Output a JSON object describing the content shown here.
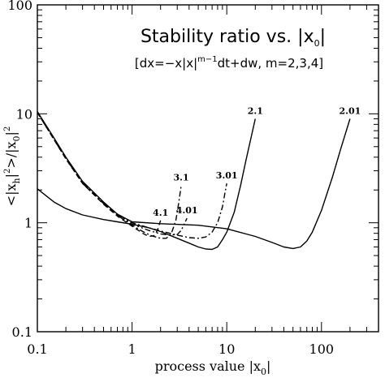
{
  "chart_data": {
    "type": "line",
    "title": {
      "main": "Stability ratio vs. ",
      "abs_var": "x",
      "abs_sub": "0"
    },
    "subtitle": {
      "part1": "[dx=−x|x|",
      "exp": "m−1",
      "part2": "dt+dw, m=2,3,4]"
    },
    "xlabel": {
      "text": "process value ",
      "var": "x",
      "sub": "0"
    },
    "ylabel": {
      "lt": "<",
      "xh": "x",
      "xh_sub": "h",
      "sq1": "2",
      "gt": ">/",
      "x0": "x",
      "x0_sub": "0",
      "sq2": "2"
    },
    "x_scale": "log",
    "y_scale": "log",
    "xlim": [
      0.1,
      400
    ],
    "ylim": [
      0.1,
      100
    ],
    "x_ticks": [
      "0.1",
      "1",
      "10",
      "100"
    ],
    "y_ticks": [
      "0.1",
      "1",
      "10",
      "100"
    ],
    "grid": false,
    "legend": "none",
    "series": [
      {
        "name": "2.1",
        "dash": "solid",
        "points": [
          [
            0.1,
            2.05
          ],
          [
            0.15,
            1.55
          ],
          [
            0.2,
            1.35
          ],
          [
            0.3,
            1.18
          ],
          [
            0.5,
            1.07
          ],
          [
            0.7,
            1.02
          ],
          [
            1,
            0.97
          ],
          [
            1.5,
            0.9
          ],
          [
            2,
            0.83
          ],
          [
            3,
            0.72
          ],
          [
            4,
            0.65
          ],
          [
            5,
            0.6
          ],
          [
            6,
            0.575
          ],
          [
            7,
            0.57
          ],
          [
            8,
            0.6
          ],
          [
            9,
            0.7
          ],
          [
            10,
            0.82
          ],
          [
            12,
            1.25
          ],
          [
            14,
            2.2
          ],
          [
            16,
            3.8
          ],
          [
            18,
            6.0
          ],
          [
            20,
            9.0
          ]
        ]
      },
      {
        "name": "2.01",
        "dash": "solid",
        "points": [
          [
            0.1,
            10.5
          ],
          [
            0.15,
            6.0
          ],
          [
            0.2,
            4.0
          ],
          [
            0.3,
            2.4
          ],
          [
            0.5,
            1.55
          ],
          [
            0.7,
            1.2
          ],
          [
            1,
            1.02
          ],
          [
            2,
            0.98
          ],
          [
            5,
            0.95
          ],
          [
            10,
            0.88
          ],
          [
            20,
            0.75
          ],
          [
            30,
            0.66
          ],
          [
            40,
            0.6
          ],
          [
            50,
            0.58
          ],
          [
            60,
            0.6
          ],
          [
            70,
            0.68
          ],
          [
            80,
            0.82
          ],
          [
            100,
            1.3
          ],
          [
            130,
            2.6
          ],
          [
            160,
            4.8
          ],
          [
            200,
            9.0
          ]
        ]
      },
      {
        "name": "3.1",
        "dash": "dashdot",
        "points": [
          [
            0.1,
            10.3
          ],
          [
            0.15,
            5.8
          ],
          [
            0.2,
            3.9
          ],
          [
            0.3,
            2.3
          ],
          [
            0.5,
            1.5
          ],
          [
            0.7,
            1.17
          ],
          [
            1,
            0.95
          ],
          [
            1.3,
            0.83
          ],
          [
            1.6,
            0.76
          ],
          [
            2,
            0.72
          ],
          [
            2.3,
            0.72
          ],
          [
            2.6,
            0.8
          ],
          [
            2.9,
            1.05
          ],
          [
            3.1,
            1.5
          ],
          [
            3.3,
            2.2
          ]
        ]
      },
      {
        "name": "3.01",
        "dash": "dashdot",
        "points": [
          [
            0.1,
            10.4
          ],
          [
            0.15,
            5.9
          ],
          [
            0.2,
            3.95
          ],
          [
            0.3,
            2.35
          ],
          [
            0.5,
            1.52
          ],
          [
            0.7,
            1.2
          ],
          [
            1,
            1.0
          ],
          [
            1.5,
            0.9
          ],
          [
            2,
            0.84
          ],
          [
            3,
            0.77
          ],
          [
            4,
            0.73
          ],
          [
            5,
            0.72
          ],
          [
            6,
            0.74
          ],
          [
            7,
            0.82
          ],
          [
            8,
            1.0
          ],
          [
            9,
            1.4
          ],
          [
            9.6,
            1.9
          ],
          [
            10,
            2.3
          ]
        ]
      },
      {
        "name": "4.1",
        "dash": "dashed",
        "points": [
          [
            0.1,
            10.3
          ],
          [
            0.15,
            5.8
          ],
          [
            0.2,
            3.85
          ],
          [
            0.3,
            2.3
          ],
          [
            0.5,
            1.48
          ],
          [
            0.7,
            1.15
          ],
          [
            1,
            0.93
          ],
          [
            1.3,
            0.8
          ],
          [
            1.5,
            0.75
          ],
          [
            1.7,
            0.76
          ],
          [
            1.85,
            0.85
          ],
          [
            2.0,
            1.05
          ]
        ]
      },
      {
        "name": "4.01",
        "dash": "dashdotdot",
        "points": [
          [
            0.1,
            10.3
          ],
          [
            0.15,
            5.85
          ],
          [
            0.2,
            3.9
          ],
          [
            0.3,
            2.32
          ],
          [
            0.5,
            1.5
          ],
          [
            0.7,
            1.18
          ],
          [
            1,
            0.97
          ],
          [
            1.5,
            0.85
          ],
          [
            2,
            0.79
          ],
          [
            2.5,
            0.77
          ],
          [
            3,
            0.78
          ],
          [
            3.3,
            0.85
          ],
          [
            3.6,
            1.0
          ],
          [
            3.8,
            1.1
          ]
        ]
      }
    ]
  }
}
